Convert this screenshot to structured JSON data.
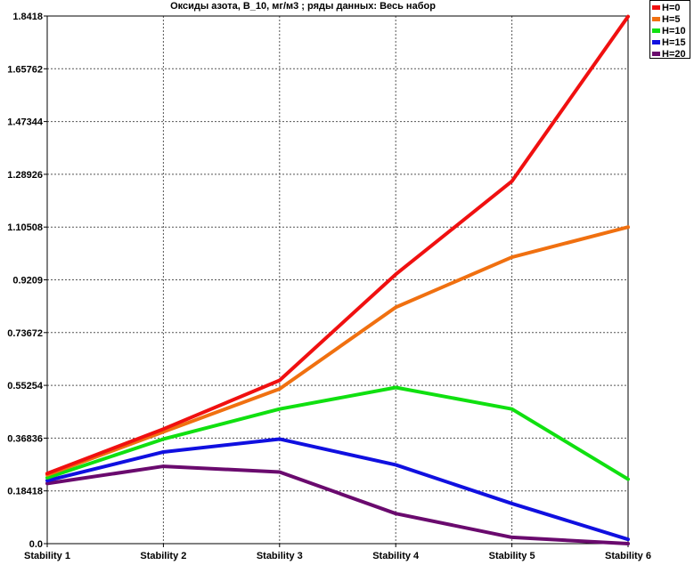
{
  "chart_data": {
    "type": "line",
    "title": "Оксиды азота, В_10,  мг/м3  ; ряды данных: Весь набор",
    "xlabel": "",
    "ylabel": "",
    "categories": [
      "Stability 1",
      "Stability 2",
      "Stability 3",
      "Stability 4",
      "Stability 5",
      "Stability 6"
    ],
    "ylim": [
      0,
      1.8418
    ],
    "yticks": [
      "1.8418",
      "1.65762",
      "1.47344",
      "1.28926",
      "1.10508",
      "0.9209",
      "0.73672",
      "0.55254",
      "0.36836",
      "0.18418",
      "0.0"
    ],
    "grid": true,
    "legend_position": "top-right",
    "series": [
      {
        "name": "H=20",
        "color": "#6a0a6e",
        "values": [
          0.21,
          0.27,
          0.25,
          0.105,
          0.022,
          0.0
        ]
      },
      {
        "name": "H=15",
        "color": "#1010e0",
        "values": [
          0.22,
          0.32,
          0.365,
          0.275,
          0.14,
          0.015
        ]
      },
      {
        "name": "H=10",
        "color": "#10e010",
        "values": [
          0.23,
          0.365,
          0.47,
          0.545,
          0.47,
          0.225
        ]
      },
      {
        "name": "H=5",
        "color": "#f07010",
        "values": [
          0.24,
          0.39,
          0.54,
          0.825,
          1.0,
          1.105
        ]
      },
      {
        "name": "H=0",
        "color": "#f01010",
        "values": [
          0.245,
          0.4,
          0.57,
          0.94,
          1.265,
          1.84
        ]
      }
    ]
  }
}
